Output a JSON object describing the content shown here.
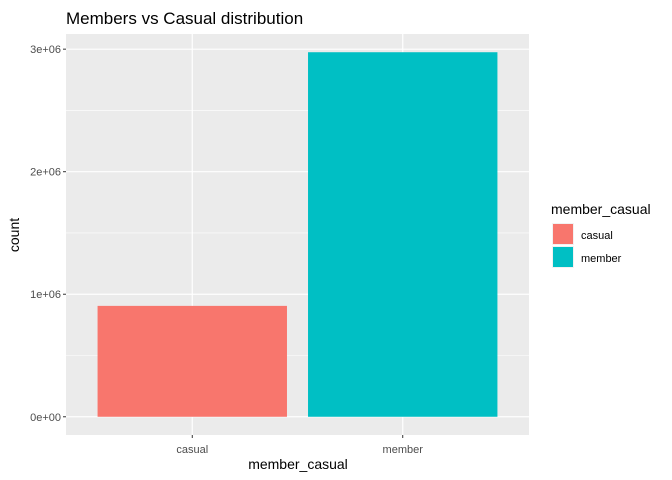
{
  "chart_data": {
    "type": "bar",
    "title": "Members vs Casual distribution",
    "xlabel": "member_casual",
    "ylabel": "count",
    "categories": [
      "casual",
      "member"
    ],
    "values": [
      905000,
      2975000
    ],
    "colors": [
      "#F8766D",
      "#00BFC4"
    ],
    "y_ticks": [
      {
        "value": 0,
        "label": "0e+00"
      },
      {
        "value": 1000000,
        "label": "1e+06"
      },
      {
        "value": 2000000,
        "label": "2e+06"
      },
      {
        "value": 3000000,
        "label": "3e+06"
      }
    ],
    "ylim": [
      -148750,
      3123750
    ],
    "grid": true,
    "legend": {
      "title": "member_casual",
      "placement": "right",
      "items": [
        {
          "label": "casual",
          "color": "#F8766D"
        },
        {
          "label": "member",
          "color": "#00BFC4"
        }
      ]
    },
    "panel_background": "#EBEBEB",
    "grid_color": "#FFFFFF"
  }
}
